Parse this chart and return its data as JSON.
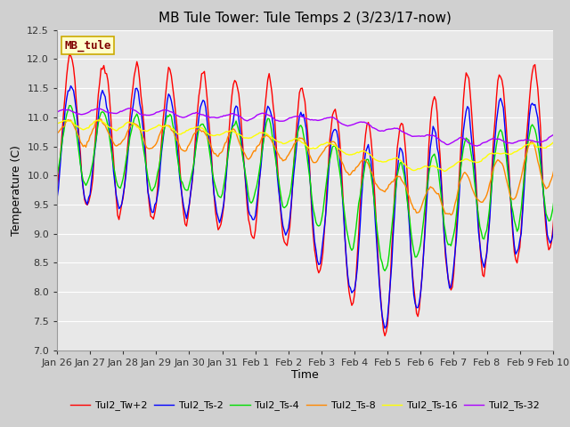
{
  "title": "MB Tule Tower: Tule Temps 2 (3/23/17-now)",
  "xlabel": "Time",
  "ylabel": "Temperature (C)",
  "ylim": [
    7.0,
    12.5
  ],
  "yticks": [
    7.0,
    7.5,
    8.0,
    8.5,
    9.0,
    9.5,
    10.0,
    10.5,
    11.0,
    11.5,
    12.0,
    12.5
  ],
  "series_colors": {
    "Tul2_Tw+2": "#ff0000",
    "Tul2_Ts-2": "#0000ff",
    "Tul2_Ts-4": "#00dd00",
    "Tul2_Ts-8": "#ff8800",
    "Tul2_Ts-16": "#ffff00",
    "Tul2_Ts-32": "#aa00ff"
  },
  "legend_labels": [
    "Tul2_Tw+2",
    "Tul2_Ts-2",
    "Tul2_Ts-4",
    "Tul2_Ts-8",
    "Tul2_Ts-16",
    "Tul2_Ts-32"
  ],
  "station_label": "MB_tule",
  "station_label_color": "#800000",
  "station_box_facecolor": "#ffffcc",
  "station_box_edgecolor": "#ccaa00",
  "plot_bg_color": "#e8e8e8",
  "fig_bg_color": "#d0d0d0",
  "grid_color": "#ffffff",
  "title_fontsize": 11,
  "axis_fontsize": 9,
  "tick_fontsize": 8,
  "legend_fontsize": 8,
  "linewidth": 1.0,
  "n_points": 384,
  "xtick_labels": [
    "Jan 26",
    "Jan 27",
    "Jan 28",
    "Jan 29",
    "Jan 30",
    "Jan 31",
    "Feb 1",
    "Feb 2",
    "Feb 3",
    "Feb 4",
    "Feb 5",
    "Feb 6",
    "Feb 7",
    "Feb 8",
    "Feb 9",
    "Feb 10"
  ],
  "xtick_positions": [
    0,
    24,
    48,
    72,
    96,
    120,
    144,
    168,
    192,
    216,
    240,
    264,
    288,
    312,
    336,
    360
  ]
}
